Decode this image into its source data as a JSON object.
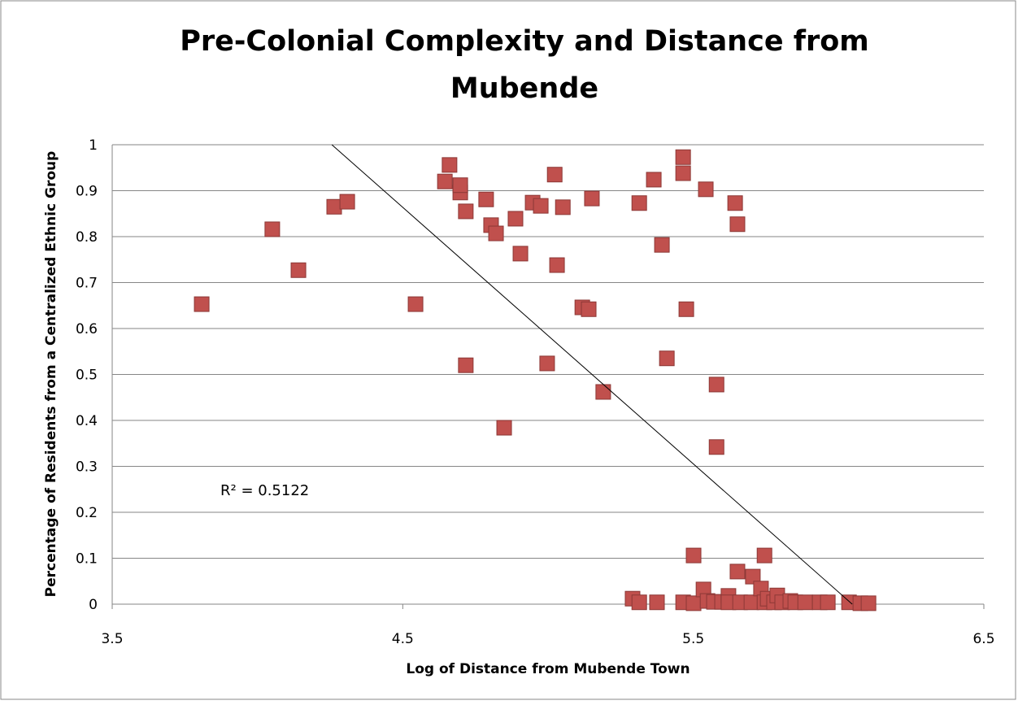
{
  "chart_data": {
    "type": "scatter",
    "title": "Pre-Colonial Complexity and Distance from Mubende",
    "x_label": "Log of Distance from Mubende Town",
    "y_label": "Percentage of Residents from a Centralized Ethnic Group",
    "annotation": "R² = 0.5122",
    "xlim": [
      3.5,
      6.5
    ],
    "xticks": [
      3.5,
      4.5,
      5.5,
      6.5
    ],
    "ylim": [
      0,
      1
    ],
    "yticks": [
      0,
      0.1,
      0.2,
      0.3,
      0.4,
      0.5,
      0.6,
      0.7,
      0.8,
      0.9,
      1
    ],
    "grid": true,
    "series": [
      {
        "color": "#c0504d",
        "x": [
          3.808,
          4.051,
          4.141,
          4.264,
          4.309,
          4.544,
          4.645,
          4.661,
          4.698,
          4.698,
          4.717,
          4.717,
          4.787,
          4.804,
          4.821,
          4.849,
          4.888,
          4.905,
          4.947,
          4.975,
          4.997,
          5.023,
          5.031,
          5.051,
          5.118,
          5.14,
          5.151,
          5.19,
          5.291,
          5.314,
          5.314,
          5.364,
          5.375,
          5.392,
          5.409,
          5.465,
          5.465,
          5.465,
          5.476,
          5.501,
          5.501,
          5.535,
          5.543,
          5.549,
          5.571,
          5.58,
          5.58,
          5.599,
          5.621,
          5.621,
          5.644,
          5.652,
          5.652,
          5.661,
          5.7,
          5.705,
          5.733,
          5.745,
          5.745,
          5.756,
          5.778,
          5.789,
          5.806,
          5.834,
          5.851,
          5.885,
          5.935,
          5.963,
          6.036,
          6.075,
          6.103
        ],
        "values": [
          0.653,
          0.816,
          0.727,
          0.865,
          0.876,
          0.653,
          0.92,
          0.956,
          0.896,
          0.912,
          0.855,
          0.52,
          0.881,
          0.825,
          0.807,
          0.384,
          0.839,
          0.763,
          0.874,
          0.867,
          0.524,
          0.935,
          0.738,
          0.864,
          0.646,
          0.642,
          0.883,
          0.462,
          0.012,
          0.873,
          0.004,
          0.924,
          0.004,
          0.782,
          0.535,
          0.973,
          0.938,
          0.004,
          0.642,
          0.106,
          0.002,
          0.032,
          0.903,
          0.007,
          0.005,
          0.478,
          0.342,
          0.005,
          0.018,
          0.004,
          0.873,
          0.827,
          0.071,
          0.004,
          0.004,
          0.06,
          0.034,
          0.106,
          0.004,
          0.012,
          0.004,
          0.019,
          0.004,
          0.007,
          0.004,
          0.004,
          0.004,
          0.004,
          0.004,
          0.002,
          0.002
        ]
      }
    ],
    "trendline": {
      "x": [
        4.256,
        6.047
      ],
      "values": [
        1,
        0
      ]
    }
  }
}
